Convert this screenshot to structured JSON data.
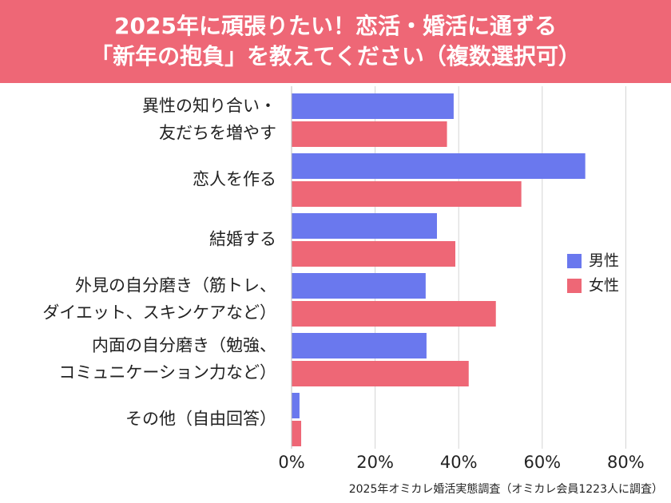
{
  "header": {
    "title_line1": "2025年に頑張りたい！恋活・婚活に通ずる",
    "title_line2": "「新年の抱負」を教えてください（複数選択可）"
  },
  "footer": {
    "source": "2025年オミカレ婚活実態調査（オミカレ会員1223人に調査）"
  },
  "colors": {
    "header_bg": "#ee6776",
    "male": "#6a78ee",
    "female": "#ee6776"
  },
  "chart_data": {
    "type": "bar",
    "orientation": "horizontal",
    "title": "2025年に頑張りたい！恋活・婚活に通ずる「新年の抱負」を教えてください（複数選択可）",
    "categories": [
      [
        "異性の知り合い・",
        "友だちを増やす"
      ],
      [
        "恋人を作る"
      ],
      [
        "結婚する"
      ],
      [
        "外見の自分磨き（筋トレ、",
        "ダイエット、スキンケアなど）"
      ],
      [
        "内面の自分磨き（勉強、",
        "コミュニケーション力など）"
      ],
      [
        "その他（自由回答）"
      ]
    ],
    "series": [
      {
        "name": "男性",
        "color": "#6a78ee",
        "values": [
          38.8,
          70.3,
          34.8,
          32.1,
          32.3,
          1.9
        ]
      },
      {
        "name": "女性",
        "color": "#ee6776",
        "values": [
          37.2,
          55.0,
          39.2,
          48.9,
          42.4,
          2.3
        ]
      }
    ],
    "xlim": [
      0,
      80
    ],
    "xticks": [
      0,
      20,
      40,
      60,
      80
    ],
    "tick_labels": [
      "0%",
      "20%",
      "40%",
      "60%",
      "80%"
    ],
    "grid": true,
    "legend": "right"
  }
}
